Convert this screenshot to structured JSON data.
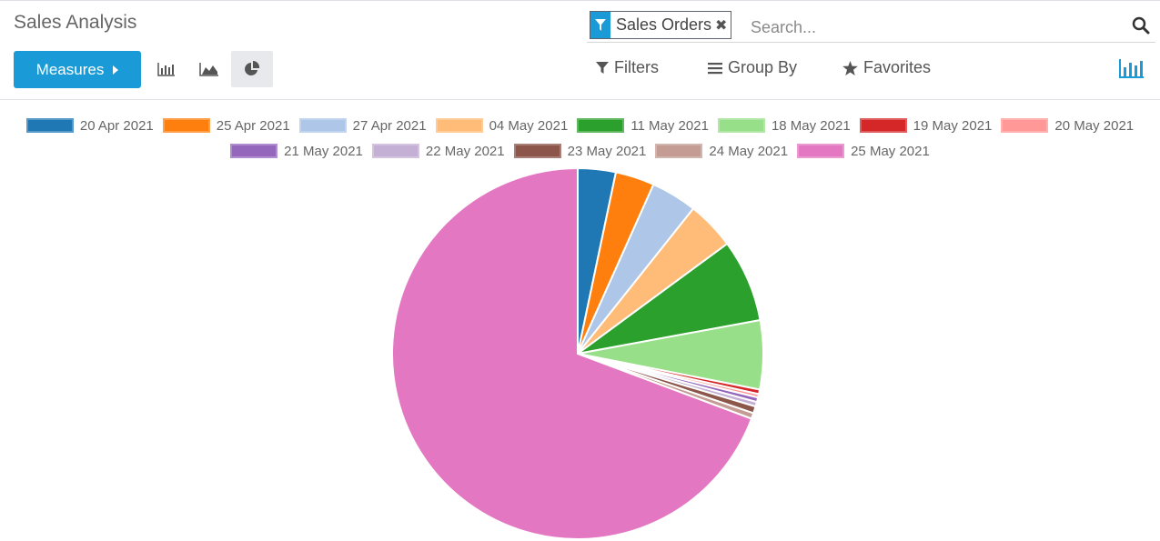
{
  "header": {
    "title": "Sales Analysis"
  },
  "search": {
    "facet_label": "Sales Orders",
    "placeholder": "Search..."
  },
  "toolbar": {
    "measures_label": "Measures",
    "filters_label": "Filters",
    "groupby_label": "Group By",
    "favorites_label": "Favorites",
    "view_buttons": [
      "bar-chart-icon",
      "line-chart-icon",
      "pie-chart-icon"
    ],
    "active_view": "pie"
  },
  "colors": {
    "primary": "#1a9bd7"
  },
  "chart_data": {
    "type": "pie",
    "title": "",
    "legend_position": "top",
    "categories": [
      "20 Apr 2021",
      "25 Apr 2021",
      "27 Apr 2021",
      "04 May 2021",
      "11 May 2021",
      "18 May 2021",
      "19 May 2021",
      "20 May 2021",
      "21 May 2021",
      "22 May 2021",
      "23 May 2021",
      "24 May 2021",
      "25 May 2021"
    ],
    "values": [
      3.3,
      3.4,
      4.0,
      4.2,
      7.2,
      6.0,
      0.4,
      0.3,
      0.4,
      0.4,
      0.6,
      0.5,
      69.3
    ],
    "colors": [
      "#1f77b4",
      "#ff7f0e",
      "#aec7e8",
      "#ffbb78",
      "#2ca02c",
      "#98df8a",
      "#d62728",
      "#ff9896",
      "#9467bd",
      "#c5b0d5",
      "#8c564b",
      "#c49c94",
      "#e377c2"
    ]
  }
}
